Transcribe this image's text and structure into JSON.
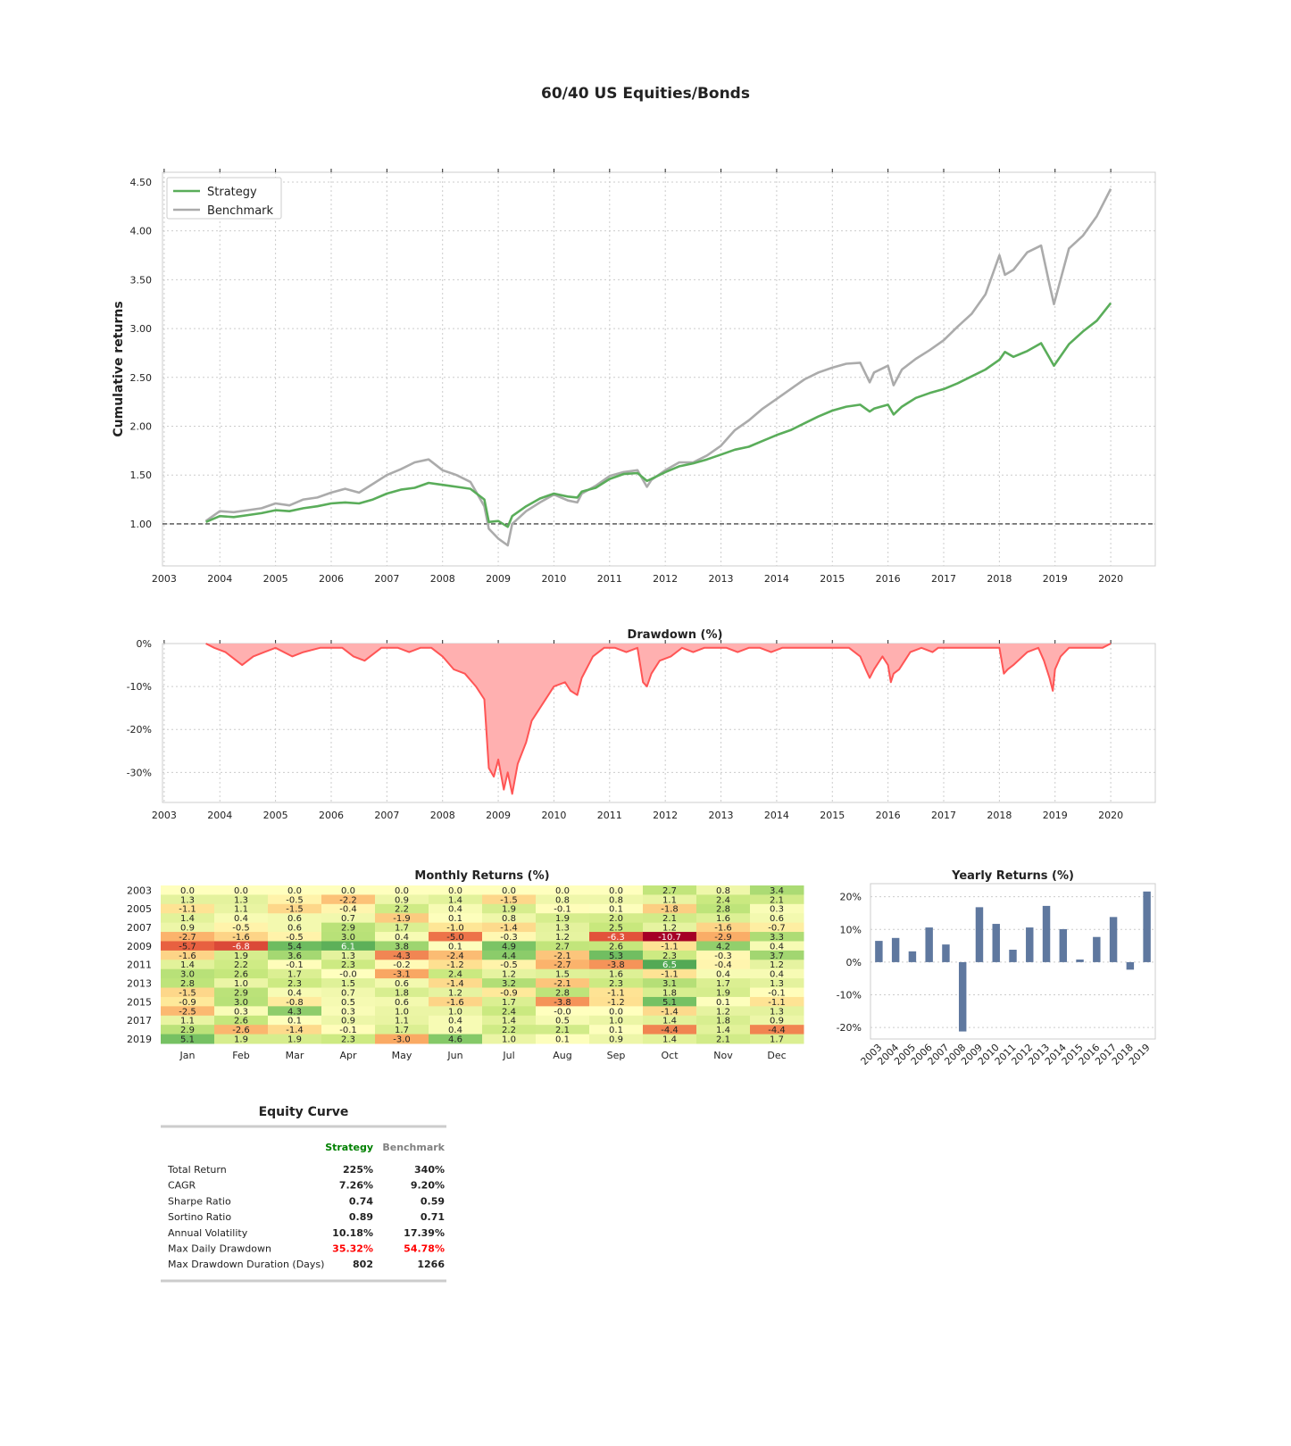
{
  "page_title": "60/40 US Equities/Bonds",
  "colors": {
    "strategy": "#5aad5a",
    "benchmark": "#ababab",
    "drawdown_line": "#ff5555",
    "drawdown_fill": "#ffb0b0",
    "yearly_bar": "#5f789f",
    "grid": "#cccccc",
    "frame": "#cccccc",
    "positive": "#008000",
    "negative": "#ff0000"
  },
  "chart_data": [
    {
      "id": "cumulative",
      "type": "line",
      "title": "",
      "xlabel": "",
      "ylabel": "Cumulative returns",
      "xlim": [
        2002.97,
        2020.8
      ],
      "ylim": [
        0.57,
        4.6
      ],
      "x_ticks": [
        "2003",
        "2004",
        "2005",
        "2006",
        "2007",
        "2008",
        "2009",
        "2010",
        "2011",
        "2012",
        "2013",
        "2014",
        "2015",
        "2016",
        "2017",
        "2018",
        "2019",
        "2020"
      ],
      "y_ticks": [
        "1.00",
        "1.50",
        "2.00",
        "2.50",
        "3.00",
        "3.50",
        "4.00",
        "4.50"
      ],
      "y_tick_values": [
        1.0,
        1.5,
        2.0,
        2.5,
        3.0,
        3.5,
        4.0,
        4.5
      ],
      "baseline": 1.0,
      "legend": [
        "Strategy",
        "Benchmark"
      ],
      "legend_position": "top-left",
      "grid": true,
      "series": [
        {
          "name": "Strategy",
          "x": [
            2003.75,
            2004.0,
            2004.25,
            2004.5,
            2004.75,
            2005.0,
            2005.25,
            2005.5,
            2005.75,
            2006.0,
            2006.25,
            2006.5,
            2006.75,
            2007.0,
            2007.25,
            2007.5,
            2007.75,
            2008.0,
            2008.25,
            2008.5,
            2008.75,
            2008.83,
            2009.0,
            2009.17,
            2009.25,
            2009.5,
            2009.75,
            2010.0,
            2010.25,
            2010.42,
            2010.5,
            2010.75,
            2011.0,
            2011.25,
            2011.5,
            2011.67,
            2011.75,
            2012.0,
            2012.25,
            2012.5,
            2012.75,
            2013.0,
            2013.25,
            2013.5,
            2013.75,
            2014.0,
            2014.25,
            2014.5,
            2014.75,
            2015.0,
            2015.25,
            2015.5,
            2015.67,
            2015.75,
            2016.0,
            2016.1,
            2016.25,
            2016.5,
            2016.75,
            2017.0,
            2017.25,
            2017.5,
            2017.75,
            2018.0,
            2018.1,
            2018.25,
            2018.5,
            2018.75,
            2018.9,
            2018.98,
            2019.25,
            2019.5,
            2019.75,
            2020.0
          ],
          "values": [
            1.02,
            1.08,
            1.07,
            1.09,
            1.11,
            1.14,
            1.13,
            1.16,
            1.18,
            1.21,
            1.22,
            1.21,
            1.25,
            1.31,
            1.35,
            1.37,
            1.42,
            1.4,
            1.38,
            1.36,
            1.25,
            1.02,
            1.03,
            0.97,
            1.08,
            1.18,
            1.26,
            1.31,
            1.28,
            1.27,
            1.33,
            1.37,
            1.46,
            1.51,
            1.52,
            1.44,
            1.46,
            1.53,
            1.59,
            1.62,
            1.66,
            1.71,
            1.76,
            1.79,
            1.85,
            1.91,
            1.96,
            2.03,
            2.1,
            2.16,
            2.2,
            2.22,
            2.15,
            2.18,
            2.22,
            2.12,
            2.2,
            2.29,
            2.34,
            2.38,
            2.44,
            2.51,
            2.58,
            2.68,
            2.76,
            2.71,
            2.77,
            2.85,
            2.7,
            2.62,
            2.84,
            2.97,
            3.08,
            3.26
          ]
        },
        {
          "name": "Benchmark",
          "x": [
            2003.75,
            2004.0,
            2004.25,
            2004.5,
            2004.75,
            2005.0,
            2005.25,
            2005.5,
            2005.75,
            2006.0,
            2006.25,
            2006.5,
            2006.75,
            2007.0,
            2007.25,
            2007.5,
            2007.75,
            2008.0,
            2008.25,
            2008.5,
            2008.75,
            2008.83,
            2009.0,
            2009.17,
            2009.25,
            2009.5,
            2009.75,
            2010.0,
            2010.25,
            2010.42,
            2010.5,
            2010.75,
            2011.0,
            2011.25,
            2011.5,
            2011.67,
            2011.75,
            2012.0,
            2012.25,
            2012.5,
            2012.75,
            2013.0,
            2013.25,
            2013.5,
            2013.75,
            2014.0,
            2014.25,
            2014.5,
            2014.75,
            2015.0,
            2015.25,
            2015.5,
            2015.67,
            2015.75,
            2016.0,
            2016.1,
            2016.25,
            2016.5,
            2016.75,
            2017.0,
            2017.25,
            2017.5,
            2017.75,
            2018.0,
            2018.1,
            2018.25,
            2018.5,
            2018.75,
            2018.9,
            2018.98,
            2019.25,
            2019.5,
            2019.75,
            2020.0
          ],
          "values": [
            1.03,
            1.13,
            1.12,
            1.14,
            1.16,
            1.21,
            1.19,
            1.25,
            1.27,
            1.32,
            1.36,
            1.32,
            1.41,
            1.5,
            1.56,
            1.63,
            1.66,
            1.55,
            1.5,
            1.43,
            1.18,
            0.95,
            0.85,
            0.78,
            1.0,
            1.13,
            1.22,
            1.3,
            1.24,
            1.22,
            1.31,
            1.39,
            1.49,
            1.53,
            1.55,
            1.38,
            1.45,
            1.55,
            1.63,
            1.63,
            1.7,
            1.8,
            1.96,
            2.06,
            2.18,
            2.28,
            2.38,
            2.48,
            2.55,
            2.6,
            2.64,
            2.65,
            2.45,
            2.55,
            2.62,
            2.42,
            2.58,
            2.69,
            2.78,
            2.88,
            3.02,
            3.15,
            3.35,
            3.75,
            3.55,
            3.6,
            3.78,
            3.85,
            3.45,
            3.25,
            3.82,
            3.95,
            4.15,
            4.43
          ]
        }
      ]
    },
    {
      "id": "drawdown",
      "type": "area",
      "title": "Drawdown (%)",
      "xlim": [
        2002.97,
        2020.8
      ],
      "ylim": [
        -37,
        0
      ],
      "x_ticks": [
        "2003",
        "2004",
        "2005",
        "2006",
        "2007",
        "2008",
        "2009",
        "2010",
        "2011",
        "2012",
        "2013",
        "2014",
        "2015",
        "2016",
        "2017",
        "2018",
        "2019",
        "2020"
      ],
      "y_ticks": [
        "0%",
        "-10%",
        "-20%",
        "-30%"
      ],
      "y_tick_values": [
        0,
        -10,
        -20,
        -30
      ],
      "grid": true,
      "x": [
        2003.75,
        2003.9,
        2004.1,
        2004.3,
        2004.4,
        2004.6,
        2004.8,
        2005.0,
        2005.3,
        2005.5,
        2005.8,
        2006.2,
        2006.4,
        2006.6,
        2006.9,
        2007.2,
        2007.4,
        2007.6,
        2007.8,
        2008.0,
        2008.2,
        2008.4,
        2008.6,
        2008.75,
        2008.83,
        2008.92,
        2009.0,
        2009.1,
        2009.17,
        2009.25,
        2009.35,
        2009.5,
        2009.6,
        2009.75,
        2009.9,
        2010.0,
        2010.2,
        2010.3,
        2010.42,
        2010.5,
        2010.7,
        2010.9,
        2011.1,
        2011.3,
        2011.5,
        2011.6,
        2011.67,
        2011.75,
        2011.9,
        2012.1,
        2012.3,
        2012.5,
        2012.7,
        2012.9,
        2013.1,
        2013.3,
        2013.5,
        2013.7,
        2013.9,
        2014.1,
        2014.3,
        2014.5,
        2014.7,
        2014.9,
        2015.1,
        2015.3,
        2015.5,
        2015.6,
        2015.67,
        2015.75,
        2015.9,
        2016.0,
        2016.05,
        2016.1,
        2016.2,
        2016.4,
        2016.6,
        2016.8,
        2016.9,
        2017.1,
        2017.3,
        2017.6,
        2017.9,
        2018.0,
        2018.08,
        2018.15,
        2018.25,
        2018.5,
        2018.7,
        2018.8,
        2018.9,
        2018.96,
        2019.0,
        2019.1,
        2019.25,
        2019.5,
        2019.7,
        2019.85,
        2020.0
      ],
      "values": [
        0,
        -1,
        -2,
        -4,
        -5,
        -3,
        -2,
        -1,
        -3,
        -2,
        -1,
        -1,
        -3,
        -4,
        -1,
        -1,
        -2,
        -1,
        -1,
        -3,
        -6,
        -7,
        -10,
        -13,
        -29,
        -31,
        -27,
        -34,
        -30,
        -35,
        -28,
        -23,
        -18,
        -15,
        -12,
        -10,
        -9,
        -11,
        -12,
        -8,
        -3,
        -1,
        -1,
        -2,
        -1,
        -9,
        -10,
        -7,
        -4,
        -3,
        -1,
        -2,
        -1,
        -1,
        -1,
        -2,
        -1,
        -1,
        -2,
        -1,
        -1,
        -1,
        -1,
        -1,
        -1,
        -1,
        -3,
        -6,
        -8,
        -6,
        -3,
        -5,
        -9,
        -7,
        -6,
        -2,
        -1,
        -2,
        -1,
        -1,
        -1,
        -1,
        -1,
        -1,
        -7,
        -6,
        -5,
        -2,
        -1,
        -4,
        -8,
        -11,
        -6,
        -3,
        -1,
        -1,
        -1,
        -1,
        0
      ]
    },
    {
      "id": "monthly",
      "type": "heatmap",
      "title": "Monthly Returns (%)",
      "columns": [
        "Jan",
        "Feb",
        "Mar",
        "Apr",
        "May",
        "Jun",
        "Jul",
        "Aug",
        "Sep",
        "Oct",
        "Nov",
        "Dec"
      ],
      "row_labels": [
        "2003",
        "",
        "2005",
        "",
        "2007",
        "",
        "2009",
        "",
        "2011",
        "",
        "2013",
        "",
        "2015",
        "",
        "2017",
        "",
        "2019"
      ],
      "rows": [
        "2003",
        "2004",
        "2005",
        "2006",
        "2007",
        "2008",
        "2009",
        "2010",
        "2011",
        "2012",
        "2013",
        "2014",
        "2015",
        "2016",
        "2017",
        "2018",
        "2019"
      ],
      "values": [
        [
          "0.0",
          "0.0",
          "0.0",
          "0.0",
          "0.0",
          "0.0",
          "0.0",
          "0.0",
          "0.0",
          "2.7",
          "0.8",
          "3.4"
        ],
        [
          "1.3",
          "1.3",
          "-0.5",
          "-2.2",
          "0.9",
          "1.4",
          "-1.5",
          "0.8",
          "0.8",
          "1.1",
          "2.4",
          "2.1"
        ],
        [
          "-1.1",
          "1.1",
          "-1.5",
          "-0.4",
          "2.2",
          "0.4",
          "1.9",
          "-0.1",
          "0.1",
          "-1.8",
          "2.8",
          "0.3"
        ],
        [
          "1.4",
          "0.4",
          "0.6",
          "0.7",
          "-1.9",
          "0.1",
          "0.8",
          "1.9",
          "2.0",
          "2.1",
          "1.6",
          "0.6"
        ],
        [
          "0.9",
          "-0.5",
          "0.6",
          "2.9",
          "1.7",
          "-1.0",
          "-1.4",
          "1.3",
          "2.5",
          "1.2",
          "-1.6",
          "-0.7"
        ],
        [
          "-2.7",
          "-1.6",
          "-0.5",
          "3.0",
          "0.4",
          "-5.0",
          "-0.3",
          "1.2",
          "-6.3",
          "-10.7",
          "-2.9",
          "3.3"
        ],
        [
          "-5.7",
          "-6.8",
          "5.4",
          "6.1",
          "3.8",
          "0.1",
          "4.9",
          "2.7",
          "2.6",
          "-1.1",
          "4.2",
          "0.4"
        ],
        [
          "-1.6",
          "1.9",
          "3.6",
          "1.3",
          "-4.3",
          "-2.4",
          "4.4",
          "-2.1",
          "5.3",
          "2.3",
          "-0.3",
          "3.7"
        ],
        [
          "1.4",
          "2.2",
          "-0.1",
          "2.3",
          "-0.2",
          "-1.2",
          "-0.5",
          "-2.7",
          "-3.8",
          "6.5",
          "-0.4",
          "1.2"
        ],
        [
          "3.0",
          "2.6",
          "1.7",
          "-0.0",
          "-3.1",
          "2.4",
          "1.2",
          "1.5",
          "1.6",
          "-1.1",
          "0.4",
          "0.4"
        ],
        [
          "2.8",
          "1.0",
          "2.3",
          "1.5",
          "0.6",
          "-1.4",
          "3.2",
          "-2.1",
          "2.3",
          "3.1",
          "1.7",
          "1.3"
        ],
        [
          "-1.5",
          "2.9",
          "0.4",
          "0.7",
          "1.8",
          "1.2",
          "-0.9",
          "2.8",
          "-1.1",
          "1.8",
          "1.9",
          "-0.1"
        ],
        [
          "-0.9",
          "3.0",
          "-0.8",
          "0.5",
          "0.6",
          "-1.6",
          "1.7",
          "-3.8",
          "-1.2",
          "5.1",
          "0.1",
          "-1.1"
        ],
        [
          "-2.5",
          "0.3",
          "4.3",
          "0.3",
          "1.0",
          "1.0",
          "2.4",
          "-0.0",
          "0.0",
          "-1.4",
          "1.2",
          "1.3"
        ],
        [
          "1.1",
          "2.6",
          "0.1",
          "0.9",
          "1.1",
          "0.4",
          "1.4",
          "0.5",
          "1.0",
          "1.4",
          "1.8",
          "0.9"
        ],
        [
          "2.9",
          "-2.6",
          "-1.4",
          "-0.1",
          "1.7",
          "0.4",
          "2.2",
          "2.1",
          "0.1",
          "-4.4",
          "1.4",
          "-4.4"
        ],
        [
          "5.1",
          "1.9",
          "1.9",
          "2.3",
          "-3.0",
          "4.6",
          "1.0",
          "0.1",
          "0.9",
          "1.4",
          "2.1",
          "1.7"
        ]
      ]
    },
    {
      "id": "yearly",
      "type": "bar",
      "title": "Yearly Returns (%)",
      "categories": [
        "2003",
        "2004",
        "2005",
        "2006",
        "2007",
        "2008",
        "2009",
        "2010",
        "2011",
        "2012",
        "2013",
        "2014",
        "2015",
        "2016",
        "2017",
        "2018",
        "2019"
      ],
      "values": [
        6.5,
        7.4,
        3.3,
        10.6,
        5.4,
        -21.2,
        16.8,
        11.7,
        3.8,
        10.6,
        17.2,
        10.1,
        0.8,
        7.7,
        13.8,
        -2.3,
        21.6
      ],
      "ylim": [
        -23.5,
        24
      ],
      "y_ticks": [
        "20%",
        "10%",
        "0%",
        "-10%",
        "-20%"
      ],
      "y_tick_values": [
        20,
        10,
        0,
        -10,
        -20
      ],
      "grid": true
    }
  ],
  "equity_table": {
    "title": "Equity Curve",
    "header_strategy": "Strategy",
    "header_benchmark": "Benchmark",
    "rows": [
      {
        "label": "Total Return",
        "strategy": "225%",
        "benchmark": "340%",
        "highlight": false
      },
      {
        "label": "CAGR",
        "strategy": "7.26%",
        "benchmark": "9.20%",
        "highlight": false
      },
      {
        "label": "Sharpe Ratio",
        "strategy": "0.74",
        "benchmark": "0.59",
        "highlight": false
      },
      {
        "label": "Sortino Ratio",
        "strategy": "0.89",
        "benchmark": "0.71",
        "highlight": false
      },
      {
        "label": "Annual Volatility",
        "strategy": "10.18%",
        "benchmark": "17.39%",
        "highlight": false
      },
      {
        "label": "Max Daily Drawdown",
        "strategy": "35.32%",
        "benchmark": "54.78%",
        "highlight": true
      },
      {
        "label": "Max Drawdown Duration (Days)",
        "strategy": "802",
        "benchmark": "1266",
        "highlight": false
      }
    ]
  }
}
